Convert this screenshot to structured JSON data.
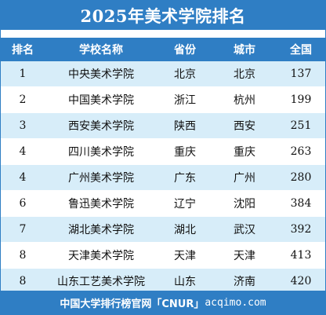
{
  "title": "2025年美术学院排名",
  "columns": [
    "排名",
    "学校名称",
    "省份",
    "城市",
    "全国"
  ],
  "rows": [
    {
      "rank": "1",
      "name": "中央美术学院",
      "province": "北京",
      "city": "北京",
      "national": "137"
    },
    {
      "rank": "2",
      "name": "中国美术学院",
      "province": "浙江",
      "city": "杭州",
      "national": "199"
    },
    {
      "rank": "3",
      "name": "西安美术学院",
      "province": "陕西",
      "city": "西安",
      "national": "251"
    },
    {
      "rank": "4",
      "name": "四川美术学院",
      "province": "重庆",
      "city": "重庆",
      "national": "263"
    },
    {
      "rank": "4",
      "name": "广州美术学院",
      "province": "广东",
      "city": "广州",
      "national": "280"
    },
    {
      "rank": "6",
      "name": "鲁迅美术学院",
      "province": "辽宁",
      "city": "沈阳",
      "national": "384"
    },
    {
      "rank": "7",
      "name": "湖北美术学院",
      "province": "湖北",
      "city": "武汉",
      "national": "392"
    },
    {
      "rank": "8",
      "name": "天津美术学院",
      "province": "天津",
      "city": "天津",
      "national": "413"
    },
    {
      "rank": "8",
      "name": "山东工艺美术学院",
      "province": "山东",
      "city": "济南",
      "national": "420"
    }
  ],
  "footer": {
    "text": "中国大学排行榜官网「CNUR」",
    "url": "acqimo.com"
  },
  "colors": {
    "header_blue": "#2f7ec4",
    "stripe_light_blue": "#d7edf9"
  }
}
